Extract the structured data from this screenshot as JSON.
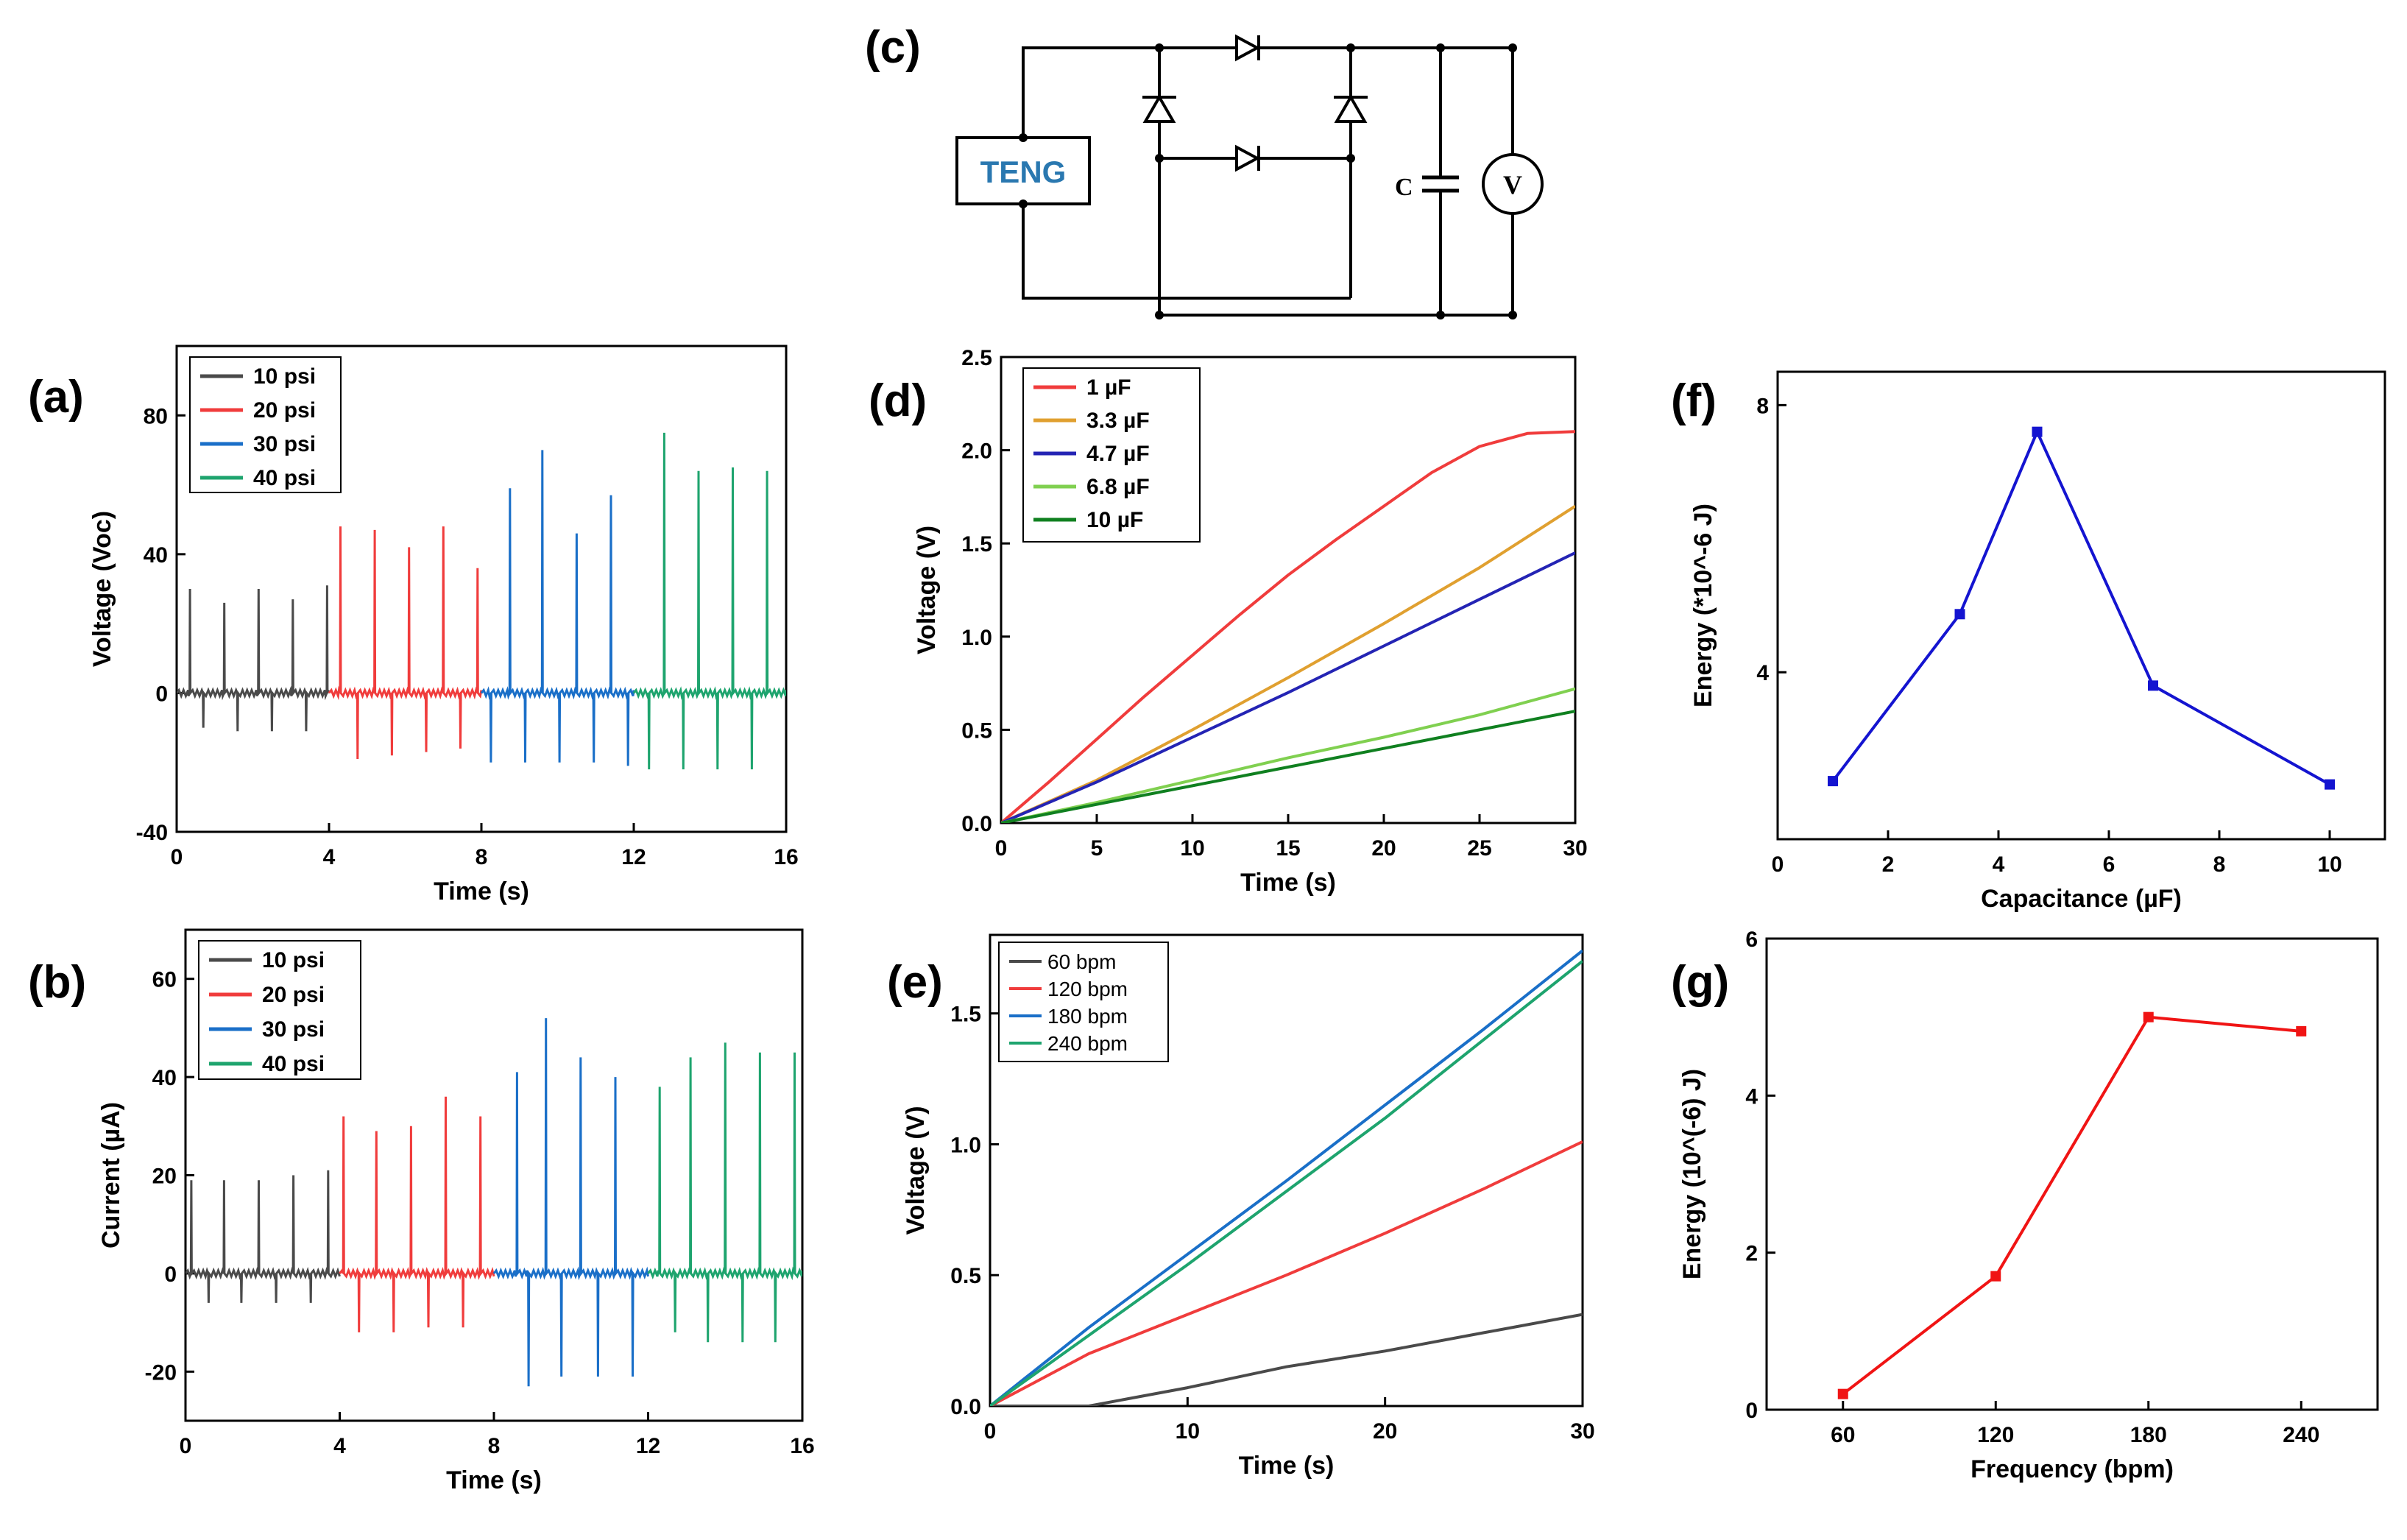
{
  "panel_labels": {
    "a": "(a)",
    "b": "(b)",
    "c": "(c)",
    "d": "(d)",
    "e": "(e)",
    "f": "(f)",
    "g": "(g)"
  },
  "circuit": {
    "teng_label": "TENG",
    "cap_label": "C",
    "meter_label": "V",
    "teng_color": "#2a78b0"
  },
  "series_colors": {
    "gray": "#4a4a4a",
    "red": "#f03c3c",
    "blue": "#1a6fc8",
    "green": "#1ea46e",
    "orange": "#e0a030",
    "navy": "#2424b4",
    "lightgreen": "#80d050",
    "darkgreen": "#108020",
    "marker_blue": "#1414d0",
    "marker_red": "#f01414"
  },
  "chart_data": [
    {
      "id": "a",
      "type": "line",
      "title": "",
      "xlabel": "Time (s)",
      "ylabel": "Voltage (Voc)",
      "xlim": [
        0,
        16
      ],
      "ylim": [
        -40,
        100
      ],
      "xticks": [
        "0",
        "4",
        "8",
        "12",
        "16"
      ],
      "xtick_values": [
        0,
        4,
        8,
        12,
        16
      ],
      "yticks": [
        "-40",
        "0",
        "40",
        "80"
      ],
      "ytick_values": [
        -40,
        0,
        40,
        80
      ],
      "legend": [
        "10 psi",
        "20 psi",
        "30 psi",
        "40 psi"
      ],
      "series": [
        {
          "name": "10 psi",
          "t_range": [
            0,
            4
          ],
          "pos_peaks": [
            [
              0.35,
              30
            ],
            [
              1.25,
              26
            ],
            [
              2.15,
              30
            ],
            [
              3.05,
              27
            ],
            [
              3.95,
              31
            ]
          ],
          "neg_peaks": [
            [
              0.7,
              -10
            ],
            [
              1.6,
              -11
            ],
            [
              2.5,
              -11
            ],
            [
              3.4,
              -11
            ]
          ]
        },
        {
          "name": "20 psi",
          "t_range": [
            4,
            8
          ],
          "pos_peaks": [
            [
              4.3,
              48
            ],
            [
              5.2,
              47
            ],
            [
              6.1,
              42
            ],
            [
              7.0,
              48
            ],
            [
              7.9,
              36
            ]
          ],
          "neg_peaks": [
            [
              4.75,
              -19
            ],
            [
              5.65,
              -18
            ],
            [
              6.55,
              -17
            ],
            [
              7.45,
              -16
            ]
          ]
        },
        {
          "name": "30 psi",
          "t_range": [
            8,
            12
          ],
          "pos_peaks": [
            [
              8.75,
              59
            ],
            [
              9.6,
              70
            ],
            [
              10.5,
              46
            ],
            [
              11.4,
              57
            ]
          ],
          "neg_peaks": [
            [
              8.25,
              -20
            ],
            [
              9.15,
              -20
            ],
            [
              10.05,
              -20
            ],
            [
              10.95,
              -20
            ],
            [
              11.85,
              -21
            ]
          ]
        },
        {
          "name": "40 psi",
          "t_range": [
            12,
            16
          ],
          "pos_peaks": [
            [
              12.8,
              75
            ],
            [
              13.7,
              64
            ],
            [
              14.6,
              65
            ],
            [
              15.5,
              64
            ]
          ],
          "neg_peaks": [
            [
              12.4,
              -22
            ],
            [
              13.3,
              -22
            ],
            [
              14.2,
              -22
            ],
            [
              15.1,
              -22
            ]
          ]
        }
      ]
    },
    {
      "id": "b",
      "type": "line",
      "title": "",
      "xlabel": "Time (s)",
      "ylabel": "Current (µA)",
      "xlim": [
        0,
        16
      ],
      "ylim": [
        -30,
        70
      ],
      "xticks": [
        "0",
        "4",
        "8",
        "12",
        "16"
      ],
      "xtick_values": [
        0,
        4,
        8,
        12,
        16
      ],
      "yticks": [
        "-20",
        "0",
        "20",
        "40",
        "60"
      ],
      "ytick_values": [
        -20,
        0,
        20,
        40,
        60
      ],
      "legend": [
        "10 psi",
        "20 psi",
        "30 psi",
        "40 psi"
      ],
      "series": [
        {
          "name": "10 psi",
          "t_range": [
            0,
            4
          ],
          "pos_peaks": [
            [
              0.15,
              19
            ],
            [
              1.0,
              19
            ],
            [
              1.9,
              19
            ],
            [
              2.8,
              20
            ],
            [
              3.7,
              21
            ]
          ],
          "neg_peaks": [
            [
              0.6,
              -6
            ],
            [
              1.45,
              -6
            ],
            [
              2.35,
              -6
            ],
            [
              3.25,
              -6
            ]
          ]
        },
        {
          "name": "20 psi",
          "t_range": [
            4,
            8
          ],
          "pos_peaks": [
            [
              4.1,
              32
            ],
            [
              4.95,
              29
            ],
            [
              5.85,
              30
            ],
            [
              6.75,
              36
            ],
            [
              7.65,
              32
            ]
          ],
          "neg_peaks": [
            [
              4.5,
              -12
            ],
            [
              5.4,
              -12
            ],
            [
              6.3,
              -11
            ],
            [
              7.2,
              -11
            ]
          ]
        },
        {
          "name": "30 psi",
          "t_range": [
            8,
            12
          ],
          "pos_peaks": [
            [
              8.6,
              41
            ],
            [
              9.35,
              52
            ],
            [
              10.25,
              44
            ],
            [
              11.15,
              40
            ]
          ],
          "neg_peaks": [
            [
              8.9,
              -23
            ],
            [
              9.75,
              -21
            ],
            [
              10.7,
              -21
            ],
            [
              11.6,
              -21
            ]
          ]
        },
        {
          "name": "40 psi",
          "t_range": [
            12,
            16
          ],
          "pos_peaks": [
            [
              12.3,
              38
            ],
            [
              13.1,
              44
            ],
            [
              14.0,
              47
            ],
            [
              14.9,
              45
            ],
            [
              15.8,
              45
            ]
          ],
          "neg_peaks": [
            [
              12.7,
              -12
            ],
            [
              13.55,
              -14
            ],
            [
              14.45,
              -14
            ],
            [
              15.3,
              -14
            ]
          ]
        }
      ]
    },
    {
      "id": "d",
      "type": "line",
      "title": "",
      "xlabel": "Time (s)",
      "ylabel": "Voltage (V)",
      "xlim": [
        0,
        30
      ],
      "ylim": [
        0,
        2.5
      ],
      "xticks": [
        "0",
        "5",
        "10",
        "15",
        "20",
        "25",
        "30"
      ],
      "xtick_values": [
        0,
        5,
        10,
        15,
        20,
        25,
        30
      ],
      "yticks": [
        "0.0",
        "0.5",
        "1.0",
        "1.5",
        "2.0",
        "2.5"
      ],
      "ytick_values": [
        0,
        0.5,
        1.0,
        1.5,
        2.0,
        2.5
      ],
      "legend": [
        "1 µF",
        "3.3  µF",
        "4.7  µF",
        "6.8  µF",
        "10  µF"
      ],
      "series": [
        {
          "name": "1 µF",
          "x": [
            0,
            2.5,
            5,
            7.5,
            10,
            12.5,
            15,
            17.5,
            20,
            22.5,
            25,
            27.5,
            30
          ],
          "y": [
            0,
            0.22,
            0.45,
            0.68,
            0.9,
            1.12,
            1.33,
            1.52,
            1.7,
            1.88,
            2.02,
            2.09,
            2.1
          ]
        },
        {
          "name": "3.3  µF",
          "x": [
            0,
            5,
            10,
            15,
            20,
            25,
            30
          ],
          "y": [
            0,
            0.23,
            0.5,
            0.78,
            1.07,
            1.37,
            1.7
          ]
        },
        {
          "name": "4.7  µF",
          "x": [
            0,
            5,
            10,
            15,
            20,
            25,
            30
          ],
          "y": [
            0,
            0.22,
            0.46,
            0.7,
            0.95,
            1.2,
            1.45
          ]
        },
        {
          "name": "6.8  µF",
          "x": [
            0,
            5,
            10,
            15,
            20,
            25,
            30
          ],
          "y": [
            0,
            0.11,
            0.23,
            0.35,
            0.46,
            0.58,
            0.72
          ]
        },
        {
          "name": "10  µF",
          "x": [
            0,
            5,
            10,
            15,
            20,
            25,
            30
          ],
          "y": [
            0,
            0.1,
            0.2,
            0.3,
            0.4,
            0.5,
            0.6
          ]
        }
      ]
    },
    {
      "id": "e",
      "type": "line",
      "title": "",
      "xlabel": "Time (s)",
      "ylabel": "Voltage (V)",
      "xlim": [
        0,
        30
      ],
      "ylim": [
        0,
        1.8
      ],
      "xticks": [
        "0",
        "10",
        "20",
        "30"
      ],
      "xtick_values": [
        0,
        10,
        20,
        30
      ],
      "yticks": [
        "0.0",
        "0.5",
        "1.0",
        "1.5"
      ],
      "ytick_values": [
        0,
        0.5,
        1.0,
        1.5
      ],
      "legend": [
        "60 bpm",
        "120 bpm",
        "180 bpm",
        "240 bpm"
      ],
      "series": [
        {
          "name": "60 bpm",
          "x": [
            0,
            5,
            10,
            15,
            20,
            25,
            30
          ],
          "y": [
            0,
            0,
            0.07,
            0.15,
            0.21,
            0.28,
            0.35
          ]
        },
        {
          "name": "120 bpm",
          "x": [
            0,
            2,
            5,
            10,
            15,
            20,
            25,
            30
          ],
          "y": [
            0,
            0.08,
            0.2,
            0.35,
            0.5,
            0.66,
            0.83,
            1.01
          ]
        },
        {
          "name": "180 bpm",
          "x": [
            0,
            5,
            10,
            15,
            20,
            25,
            30
          ],
          "y": [
            0,
            0.3,
            0.58,
            0.86,
            1.15,
            1.44,
            1.74
          ]
        },
        {
          "name": "240 bpm",
          "x": [
            0,
            5,
            10,
            15,
            20,
            25,
            30
          ],
          "y": [
            0,
            0.27,
            0.54,
            0.82,
            1.1,
            1.4,
            1.7
          ]
        }
      ]
    },
    {
      "id": "f",
      "type": "line",
      "title": "",
      "xlabel": "Capacitance (µF)",
      "ylabel": "Energy (*10^-6 J)",
      "xlim": [
        0,
        11
      ],
      "ylim": [
        1.5,
        8.5
      ],
      "xticks": [
        "0",
        "2",
        "4",
        "6",
        "8",
        "10"
      ],
      "xtick_values": [
        0,
        2,
        4,
        6,
        8,
        10
      ],
      "yticks": [
        "4",
        "8"
      ],
      "ytick_values": [
        4,
        8
      ],
      "series": [
        {
          "name": "Energy",
          "x": [
            1,
            3.3,
            4.7,
            6.8,
            10
          ],
          "y": [
            2.37,
            4.87,
            7.6,
            3.8,
            2.32
          ]
        }
      ]
    },
    {
      "id": "g",
      "type": "line",
      "title": "",
      "xlabel": "Frequency (bpm)",
      "ylabel": "Energy (10^(-6) J)",
      "xlim": [
        30,
        270
      ],
      "ylim": [
        0,
        6
      ],
      "xticks": [
        "60",
        "120",
        "180",
        "240"
      ],
      "xtick_values": [
        60,
        120,
        180,
        240
      ],
      "yticks": [
        "0",
        "2",
        "4",
        "6"
      ],
      "ytick_values": [
        0,
        2,
        4,
        6
      ],
      "series": [
        {
          "name": "Energy",
          "x": [
            60,
            120,
            180,
            240
          ],
          "y": [
            0.2,
            1.7,
            5.0,
            4.82
          ]
        }
      ]
    }
  ]
}
